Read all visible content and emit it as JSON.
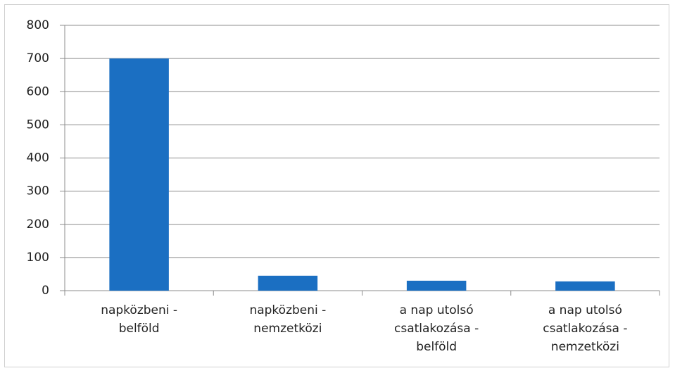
{
  "chart_data": {
    "type": "bar",
    "categories": [
      "napközbeni - belföld",
      "napközbeni - nemzetközi",
      "a nap utolsó csatlakozása - belföld",
      "a nap utolsó csatlakozása - nemzetközi"
    ],
    "values": [
      700,
      45,
      30,
      28
    ],
    "color": "#1b6fc2",
    "ylim": [
      0,
      800
    ],
    "yticks": [
      0,
      100,
      200,
      300,
      400,
      500,
      600,
      700,
      800
    ],
    "grid": true
  }
}
